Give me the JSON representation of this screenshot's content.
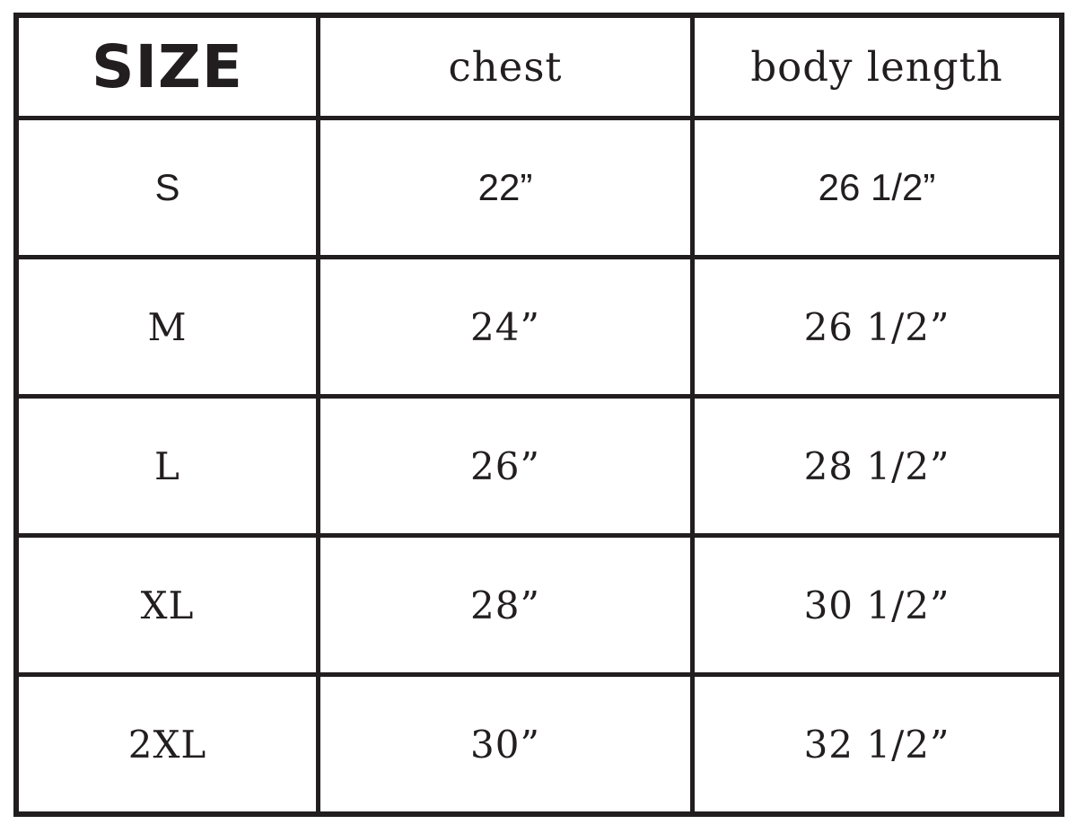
{
  "chart_data": {
    "type": "table",
    "columns": [
      "SIZE",
      "chest",
      "body length"
    ],
    "rows": [
      [
        "S",
        "22”",
        "26 1/2”"
      ],
      [
        "M",
        "24”",
        "26 1/2”"
      ],
      [
        "L",
        "26”",
        "28 1/2”"
      ],
      [
        "XL",
        "28”",
        "30 1/2”"
      ],
      [
        "2XL",
        "30”",
        "32 1/2”"
      ]
    ]
  },
  "colors": {
    "border": "#221e1f",
    "text": "#221e1f",
    "background": "#ffffff"
  }
}
